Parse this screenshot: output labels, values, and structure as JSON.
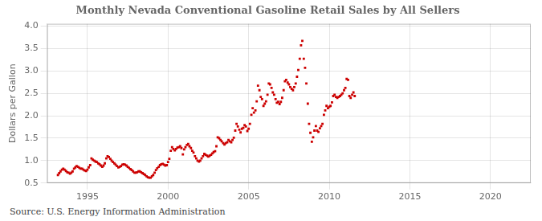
{
  "chart_data": {
    "type": "scatter",
    "title": "Monthly Nevada Conventional Gasoline Retail Sales by All Sellers",
    "ylabel": "Dollars per Gallon",
    "annotations": [
      "Source: U.S. Energy Information Administration"
    ],
    "color": "#cc0000",
    "marker": "square",
    "grid": true,
    "xlim": [
      1992.5,
      2022.5
    ],
    "ylim": [
      0.5,
      4.05
    ],
    "xticks": [
      1995,
      2000,
      2005,
      2010,
      2015,
      2020
    ],
    "yticks": [
      0.5,
      {
        "value": 1.0,
        "label": "1.0"
      },
      1.5,
      {
        "value": 2.0,
        "label": "2.0"
      },
      2.5,
      {
        "value": 3.0,
        "label": "3.0"
      },
      3.5,
      {
        "value": 4.0,
        "label": "4.0"
      }
    ],
    "x": [
      1993.17,
      1993.25,
      1993.33,
      1993.42,
      1993.5,
      1993.58,
      1993.67,
      1993.75,
      1993.83,
      1993.92,
      1994.0,
      1994.08,
      1994.17,
      1994.25,
      1994.33,
      1994.42,
      1994.5,
      1994.58,
      1994.67,
      1994.75,
      1994.83,
      1994.92,
      1995.0,
      1995.08,
      1995.17,
      1995.25,
      1995.33,
      1995.42,
      1995.5,
      1995.58,
      1995.67,
      1995.75,
      1995.83,
      1995.92,
      1996.0,
      1996.08,
      1996.17,
      1996.25,
      1996.33,
      1996.42,
      1996.5,
      1996.58,
      1996.67,
      1996.75,
      1996.83,
      1996.92,
      1997.0,
      1997.08,
      1997.17,
      1997.25,
      1997.33,
      1997.42,
      1997.5,
      1997.58,
      1997.67,
      1997.75,
      1997.83,
      1997.92,
      1998.0,
      1998.08,
      1998.17,
      1998.25,
      1998.33,
      1998.42,
      1998.5,
      1998.58,
      1998.67,
      1998.75,
      1998.83,
      1998.92,
      1999.0,
      1999.08,
      1999.17,
      1999.25,
      1999.33,
      1999.42,
      1999.5,
      1999.58,
      1999.67,
      1999.75,
      1999.83,
      1999.92,
      2000.0,
      2000.08,
      2000.17,
      2000.25,
      2000.33,
      2000.42,
      2000.5,
      2000.58,
      2000.67,
      2000.75,
      2000.83,
      2000.92,
      2001.0,
      2001.08,
      2001.17,
      2001.25,
      2001.33,
      2001.42,
      2001.5,
      2001.58,
      2001.67,
      2001.75,
      2001.83,
      2001.92,
      2002.0,
      2002.08,
      2002.17,
      2002.25,
      2002.33,
      2002.42,
      2002.5,
      2002.58,
      2002.67,
      2002.75,
      2002.83,
      2002.92,
      2003.0,
      2003.08,
      2003.17,
      2003.25,
      2003.33,
      2003.42,
      2003.5,
      2003.58,
      2003.67,
      2003.75,
      2003.83,
      2003.92,
      2004.0,
      2004.08,
      2004.17,
      2004.25,
      2004.33,
      2004.42,
      2004.5,
      2004.58,
      2004.67,
      2004.75,
      2004.83,
      2004.92,
      2005.0,
      2005.08,
      2005.17,
      2005.25,
      2005.33,
      2005.42,
      2005.5,
      2005.58,
      2005.67,
      2005.75,
      2005.83,
      2005.92,
      2006.0,
      2006.08,
      2006.17,
      2006.25,
      2006.33,
      2006.42,
      2006.5,
      2006.58,
      2006.67,
      2006.75,
      2006.83,
      2006.92,
      2007.0,
      2007.08,
      2007.17,
      2007.25,
      2007.33,
      2007.42,
      2007.5,
      2007.58,
      2007.67,
      2007.75,
      2007.83,
      2007.92,
      2008.0,
      2008.08,
      2008.17,
      2008.25,
      2008.33,
      2008.42,
      2008.5,
      2008.58,
      2008.67,
      2008.75,
      2008.83,
      2008.92,
      2009.0,
      2009.08,
      2009.17,
      2009.25,
      2009.33,
      2009.42,
      2009.5,
      2009.58,
      2009.67,
      2009.75,
      2009.83,
      2009.92,
      2010.0,
      2010.08,
      2010.17,
      2010.25,
      2010.33,
      2010.42,
      2010.5,
      2010.58,
      2010.67,
      2010.75,
      2010.83,
      2010.92,
      2011.0,
      2011.08,
      2011.17,
      2011.25,
      2011.33,
      2011.42,
      2011.5,
      2011.58
    ],
    "values": [
      0.68,
      0.72,
      0.76,
      0.8,
      0.82,
      0.8,
      0.77,
      0.74,
      0.73,
      0.71,
      0.73,
      0.76,
      0.82,
      0.85,
      0.88,
      0.86,
      0.84,
      0.82,
      0.82,
      0.8,
      0.78,
      0.77,
      0.8,
      0.85,
      0.9,
      1.05,
      1.02,
      1.0,
      0.98,
      0.97,
      0.94,
      0.92,
      0.89,
      0.86,
      0.89,
      0.94,
      1.05,
      1.1,
      1.08,
      1.04,
      1.0,
      0.97,
      0.94,
      0.91,
      0.88,
      0.85,
      0.86,
      0.88,
      0.91,
      0.92,
      0.91,
      0.89,
      0.86,
      0.84,
      0.81,
      0.79,
      0.76,
      0.73,
      0.73,
      0.74,
      0.76,
      0.76,
      0.74,
      0.72,
      0.7,
      0.68,
      0.65,
      0.63,
      0.62,
      0.62,
      0.65,
      0.68,
      0.73,
      0.79,
      0.83,
      0.86,
      0.9,
      0.92,
      0.93,
      0.91,
      0.89,
      0.9,
      0.97,
      1.04,
      1.22,
      1.3,
      1.26,
      1.23,
      1.26,
      1.29,
      1.3,
      1.32,
      1.28,
      1.14,
      1.25,
      1.3,
      1.35,
      1.37,
      1.32,
      1.28,
      1.22,
      1.18,
      1.1,
      1.05,
      1.0,
      0.98,
      1.0,
      1.05,
      1.1,
      1.15,
      1.13,
      1.11,
      1.09,
      1.11,
      1.13,
      1.16,
      1.19,
      1.21,
      1.32,
      1.52,
      1.5,
      1.46,
      1.43,
      1.39,
      1.36,
      1.39,
      1.41,
      1.46,
      1.43,
      1.41,
      1.46,
      1.51,
      1.67,
      1.82,
      1.76,
      1.69,
      1.63,
      1.71,
      1.73,
      1.79,
      1.76,
      1.66,
      1.71,
      1.82,
      2.02,
      2.17,
      2.07,
      2.12,
      2.32,
      2.67,
      2.57,
      2.42,
      2.37,
      2.22,
      2.27,
      2.32,
      2.47,
      2.72,
      2.7,
      2.62,
      2.52,
      2.47,
      2.37,
      2.29,
      2.31,
      2.26,
      2.31,
      2.4,
      2.57,
      2.77,
      2.8,
      2.74,
      2.7,
      2.64,
      2.6,
      2.57,
      2.64,
      2.72,
      2.87,
      3.02,
      3.27,
      3.57,
      3.67,
      3.27,
      3.07,
      2.72,
      2.27,
      1.82,
      1.62,
      1.42,
      1.52,
      1.67,
      1.77,
      1.67,
      1.64,
      1.72,
      1.77,
      1.82,
      2.02,
      2.12,
      2.22,
      2.17,
      2.2,
      2.22,
      2.3,
      2.44,
      2.47,
      2.42,
      2.4,
      2.42,
      2.44,
      2.47,
      2.5,
      2.57,
      2.62,
      2.82,
      2.8,
      2.44,
      2.4,
      2.47,
      2.52,
      2.44
    ]
  }
}
